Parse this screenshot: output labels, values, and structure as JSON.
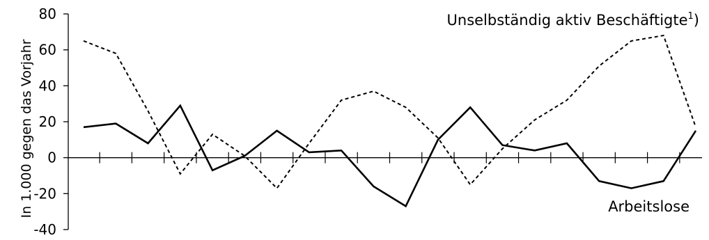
{
  "chart_data": {
    "type": "line",
    "title": "",
    "xlabel": "",
    "ylabel": "In 1.000 gegen das Vorjahr",
    "ylim": [
      -40,
      80
    ],
    "yticks": [
      80,
      60,
      40,
      20,
      0,
      -20,
      -40
    ],
    "x_tick_count": 19,
    "grid": false,
    "legend": "none",
    "x": [
      1,
      2,
      3,
      4,
      5,
      6,
      7,
      8,
      9,
      10,
      11,
      12,
      13,
      14,
      15,
      16,
      17,
      18,
      19,
      20
    ],
    "series": [
      {
        "name": "Unselbständig aktiv Beschäftigte",
        "style": "dashed",
        "color": "#000000",
        "values": [
          65,
          58,
          26,
          -9,
          13,
          1,
          -17,
          8,
          32,
          37,
          28,
          11,
          -15,
          5,
          21,
          32,
          51,
          65,
          68,
          17
        ]
      },
      {
        "name": "Arbeitslose",
        "style": "solid",
        "color": "#000000",
        "values": [
          17,
          19,
          8,
          29,
          -7,
          1,
          15,
          3,
          4,
          -16,
          -27,
          10,
          28,
          7,
          4,
          8,
          -13,
          -17,
          -13,
          15
        ]
      }
    ],
    "annotations": [
      {
        "text": "Unselbständig aktiv Beschäftigte",
        "superscript": "1",
        "suffix": ")"
      },
      {
        "text": "Arbeitslose"
      }
    ]
  }
}
